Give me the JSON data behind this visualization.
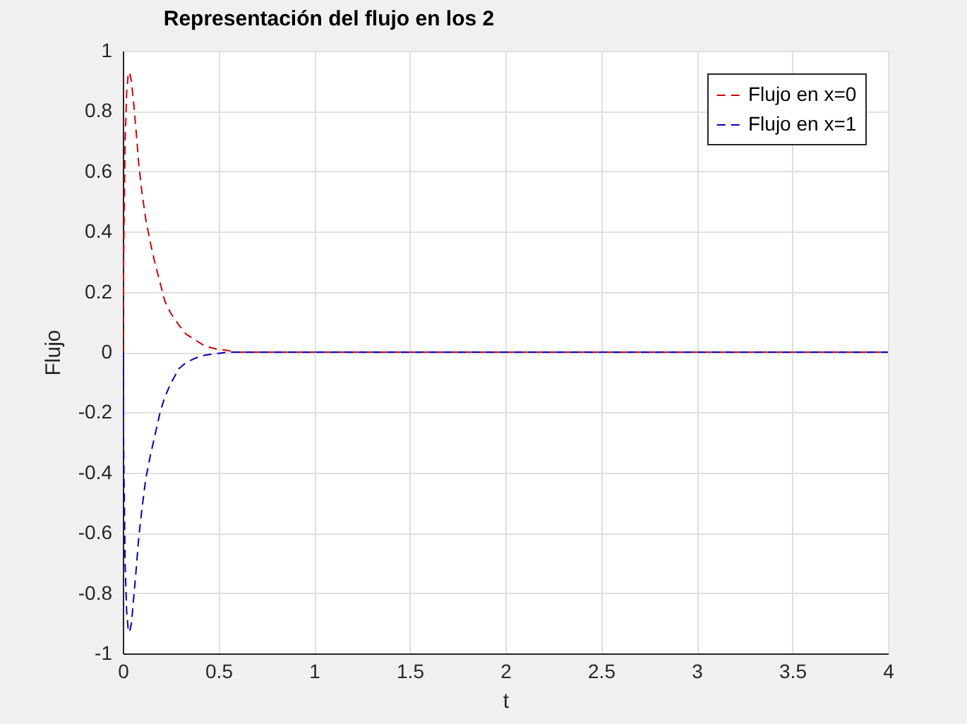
{
  "chart_data": {
    "type": "line",
    "title": "Representación del flujo en los 2",
    "xlabel": "t",
    "ylabel": "Flujo",
    "x": [
      0,
      0.005,
      0.012,
      0.02,
      0.028,
      0.035,
      0.045,
      0.059,
      0.07,
      0.084,
      0.1,
      0.12,
      0.145,
      0.17,
      0.195,
      0.219,
      0.25,
      0.293,
      0.33,
      0.379,
      0.43,
      0.49,
      0.55,
      0.6,
      0.7,
      0.8,
      1,
      1.5,
      2,
      2.5,
      3,
      3.5,
      4
    ],
    "series": [
      {
        "name": "Flujo en x=0",
        "color": "#d40000",
        "values": [
          0,
          0.35,
          0.7,
          0.86,
          0.92,
          0.93,
          0.9,
          0.81,
          0.73,
          0.62,
          0.53,
          0.44,
          0.36,
          0.29,
          0.23,
          0.17,
          0.13,
          0.09,
          0.06,
          0.04,
          0.02,
          0.01,
          0.005,
          0,
          0,
          0,
          0,
          0,
          0,
          0,
          0,
          0,
          0
        ]
      },
      {
        "name": "Flujo en x=1",
        "color": "#0000c8",
        "values": [
          0,
          -0.35,
          -0.7,
          -0.86,
          -0.92,
          -0.93,
          -0.9,
          -0.8,
          -0.72,
          -0.61,
          -0.52,
          -0.42,
          -0.34,
          -0.27,
          -0.2,
          -0.15,
          -0.105,
          -0.055,
          -0.035,
          -0.02,
          -0.01,
          -0.005,
          0,
          0,
          0,
          0,
          0,
          0,
          0,
          0,
          0,
          0,
          0
        ]
      }
    ],
    "xlim": [
      0,
      4
    ],
    "xticks": [
      0,
      0.5,
      1,
      1.5,
      2,
      2.5,
      3,
      3.5,
      4
    ],
    "ylim": [
      -1,
      1
    ],
    "yticks": [
      -1,
      -0.8,
      -0.6,
      -0.4,
      -0.2,
      0,
      0.2,
      0.4,
      0.6,
      0.8,
      1
    ],
    "grid": true,
    "legend": "top right",
    "line_style": "dashed"
  }
}
